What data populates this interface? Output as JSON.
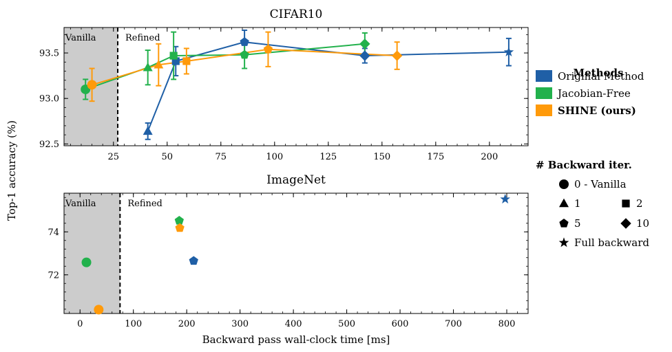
{
  "colors": {
    "original": "#1f5fa6",
    "jacobian": "#22b14c",
    "shine": "#ff9a0a",
    "shade": "#cccccc",
    "ink": "#000000"
  },
  "chart_data": [
    {
      "type": "scatter",
      "title": "CIFAR10",
      "xlabel": "",
      "ylabel": "Top-1 accuracy (%)",
      "xlim": [
        2,
        218
      ],
      "ylim": [
        92.48,
        93.78
      ],
      "xticks": [
        25,
        50,
        75,
        100,
        125,
        150,
        175,
        200
      ],
      "yticks": [
        92.5,
        93.0,
        93.5
      ],
      "ytick_labels": [
        "92.5",
        "93.0",
        "93.5"
      ],
      "shaded_region": {
        "from": 2,
        "to": 27,
        "label": "Vanilla"
      },
      "divider_x": 27,
      "refined_label": "Refined",
      "series": [
        {
          "name": "Original Method",
          "color_key": "original",
          "connected": true,
          "points": [
            {
              "x": 41,
              "y": 92.64,
              "err": 0.09,
              "marker": "triangle"
            },
            {
              "x": 54,
              "y": 93.41,
              "err": 0.16,
              "marker": "square"
            },
            {
              "x": 86,
              "y": 93.62,
              "err": 0.13,
              "marker": "pentagon"
            },
            {
              "x": 142,
              "y": 93.47,
              "err": 0.08,
              "marker": "diamond"
            },
            {
              "x": 209,
              "y": 93.51,
              "err": 0.15,
              "marker": "star"
            }
          ]
        },
        {
          "name": "Jacobian-Free",
          "color_key": "jacobian",
          "connected": true,
          "points": [
            {
              "x": 12,
              "y": 93.1,
              "err": 0.11,
              "marker": "circle"
            },
            {
              "x": 41,
              "y": 93.34,
              "err": 0.19,
              "marker": "triangle"
            },
            {
              "x": 53,
              "y": 93.47,
              "err": 0.26,
              "marker": "square"
            },
            {
              "x": 86,
              "y": 93.48,
              "err": 0.15,
              "marker": "pentagon"
            },
            {
              "x": 142,
              "y": 93.6,
              "err": 0.12,
              "marker": "diamond"
            }
          ]
        },
        {
          "name": "SHINE (ours)",
          "color_key": "shine",
          "connected": true,
          "points": [
            {
              "x": 15,
              "y": 93.15,
              "err": 0.18,
              "marker": "circle"
            },
            {
              "x": 46,
              "y": 93.37,
              "err": 0.23,
              "marker": "triangle"
            },
            {
              "x": 59,
              "y": 93.41,
              "err": 0.14,
              "marker": "square"
            },
            {
              "x": 97,
              "y": 93.54,
              "err": 0.19,
              "marker": "pentagon"
            },
            {
              "x": 157,
              "y": 93.47,
              "err": 0.15,
              "marker": "diamond"
            }
          ]
        }
      ]
    },
    {
      "type": "scatter",
      "title": "ImageNet",
      "xlabel": "Backward pass wall-clock time [ms]",
      "ylabel": "",
      "xlim": [
        -30,
        840
      ],
      "ylim": [
        70.2,
        75.8
      ],
      "xticks": [
        0,
        100,
        200,
        300,
        400,
        500,
        600,
        700,
        800
      ],
      "yticks": [
        72,
        74
      ],
      "shaded_region": {
        "from": -30,
        "to": 75,
        "label": "Vanilla"
      },
      "divider_x": 75,
      "refined_label": "Refined",
      "series": [
        {
          "name": "Original Method",
          "color_key": "original",
          "connected": false,
          "points": [
            {
              "x": 213,
              "y": 72.65,
              "marker": "pentagon"
            },
            {
              "x": 797,
              "y": 75.52,
              "marker": "star"
            }
          ]
        },
        {
          "name": "Jacobian-Free",
          "color_key": "jacobian",
          "connected": false,
          "points": [
            {
              "x": 12,
              "y": 72.58,
              "marker": "circle"
            },
            {
              "x": 186,
              "y": 74.52,
              "marker": "pentagon"
            }
          ]
        },
        {
          "name": "SHINE (ours)",
          "color_key": "shine",
          "connected": false,
          "points": [
            {
              "x": 35,
              "y": 70.38,
              "marker": "circle"
            },
            {
              "x": 187,
              "y": 74.18,
              "marker": "pentagon"
            }
          ]
        }
      ]
    }
  ],
  "legend": {
    "methods_title": "Methods",
    "methods": [
      {
        "label": "Original Method",
        "color_key": "original",
        "bold": false
      },
      {
        "label": "Jacobian-Free",
        "color_key": "jacobian",
        "bold": false
      },
      {
        "label": "SHINE (ours)",
        "color_key": "shine",
        "bold": true
      }
    ],
    "iter_title": "# Backward iter.",
    "iters": [
      {
        "label": "0 - Vanilla",
        "marker": "circle"
      },
      {
        "label": "1",
        "marker": "triangle"
      },
      {
        "label": "2",
        "marker": "square"
      },
      {
        "label": "5",
        "marker": "pentagon"
      },
      {
        "label": "10",
        "marker": "diamond"
      },
      {
        "label": "Full backward",
        "marker": "star"
      }
    ]
  }
}
